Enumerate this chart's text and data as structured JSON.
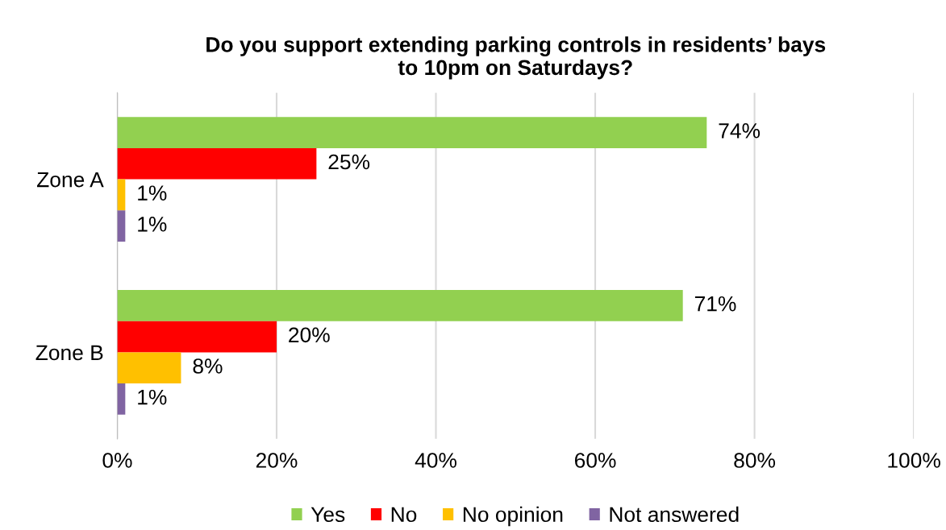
{
  "chart_data": {
    "type": "bar",
    "orientation": "horizontal",
    "title": "Do you support extending parking controls in residents’ bays\nto 10pm on Saturdays?",
    "categories": [
      "Zone A",
      "Zone B"
    ],
    "series": [
      {
        "name": "Yes",
        "color": "#92d050",
        "values": [
          74,
          71
        ],
        "value_labels": [
          "74%",
          "71%"
        ]
      },
      {
        "name": "No",
        "color": "#ff0000",
        "values": [
          25,
          20
        ],
        "value_labels": [
          "25%",
          "20%"
        ]
      },
      {
        "name": "No opinion",
        "color": "#ffc000",
        "values": [
          1,
          8
        ],
        "value_labels": [
          "1%",
          "8%"
        ]
      },
      {
        "name": "Not answered",
        "color": "#8064a2",
        "values": [
          1,
          1
        ],
        "value_labels": [
          "1%",
          "1%"
        ]
      }
    ],
    "xlim": [
      0,
      100
    ],
    "xticks": [
      {
        "value": 0,
        "label": "0%"
      },
      {
        "value": 20,
        "label": "20%"
      },
      {
        "value": 40,
        "label": "40%"
      },
      {
        "value": 60,
        "label": "60%"
      },
      {
        "value": 80,
        "label": "80%"
      },
      {
        "value": 100,
        "label": "100%"
      }
    ],
    "grid": "x",
    "legend": "bottom"
  }
}
